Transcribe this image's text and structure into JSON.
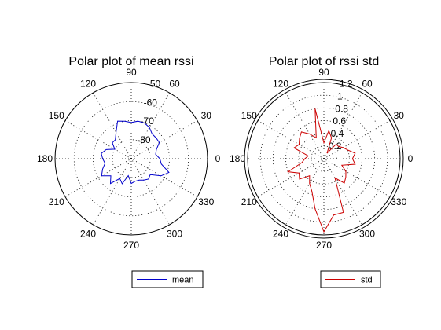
{
  "chart_data": [
    {
      "type": "polar-line",
      "title": "Polar plot of mean rssi",
      "theta_unit": "degrees",
      "theta_ticks": [
        "0",
        "30",
        "60",
        "90",
        "120",
        "150",
        "180",
        "210",
        "240",
        "270",
        "300",
        "330"
      ],
      "r_tick_labels": [
        "-80",
        "-70",
        "-60",
        "-50"
      ],
      "r_tick_values": [
        -80,
        -70,
        -60,
        -50
      ],
      "r_range": [
        -90,
        -50
      ],
      "grid": true,
      "legend_position": "bottom-right",
      "series": [
        {
          "name": "mean",
          "color": "#0000cc",
          "theta": [
            0,
            10,
            20,
            30,
            40,
            50,
            60,
            70,
            80,
            90,
            100,
            110,
            120,
            130,
            140,
            150,
            160,
            170,
            180,
            190,
            200,
            210,
            220,
            230,
            240,
            250,
            260,
            270,
            280,
            290,
            300,
            310,
            320,
            330,
            340,
            350,
            360
          ],
          "r": [
            -75,
            -77,
            -76,
            -73,
            -73,
            -73,
            -71,
            -70,
            -70,
            -71,
            -70,
            -69,
            -74,
            -77,
            -77,
            -80,
            -76,
            -74,
            -75,
            -76,
            -74,
            -72,
            -76,
            -73,
            -78,
            -76,
            -81,
            -77,
            -78,
            -78,
            -77,
            -76,
            -77,
            -72,
            -69,
            -74,
            -75
          ]
        }
      ]
    },
    {
      "type": "polar-line",
      "title": "Polar plot of rssi std",
      "theta_unit": "degrees",
      "theta_ticks": [
        "0",
        "30",
        "60",
        "90",
        "120",
        "150",
        "180",
        "210",
        "240",
        "270",
        "300",
        "330"
      ],
      "r_tick_labels": [
        "0.2",
        "0.4",
        "0.6",
        "0.8",
        "1",
        "1.2"
      ],
      "r_tick_values": [
        0.2,
        0.4,
        0.6,
        0.8,
        1.0,
        1.2
      ],
      "r_range": [
        0,
        1.2
      ],
      "grid": true,
      "legend_position": "bottom-right",
      "series": [
        {
          "name": "std",
          "color": "#cc0000",
          "theta": [
            0,
            10,
            20,
            30,
            40,
            50,
            60,
            70,
            80,
            90,
            100,
            110,
            120,
            130,
            140,
            150,
            160,
            170,
            180,
            190,
            200,
            210,
            220,
            230,
            240,
            250,
            260,
            270,
            280,
            290,
            300,
            310,
            320,
            330,
            340,
            350,
            360
          ],
          "r": [
            0.45,
            0.5,
            0.4,
            0.35,
            0.3,
            0.3,
            0.1,
            0.35,
            0.45,
            0.25,
            0.8,
            0.35,
            0.45,
            0.55,
            0.5,
            0.45,
            0.5,
            0.25,
            0.3,
            0.35,
            0.6,
            0.45,
            0.5,
            0.35,
            0.45,
            0.55,
            0.8,
            1.15,
            0.9,
            0.9,
            0.35,
            0.5,
            0.45,
            0.4,
            0.3,
            0.5,
            0.45
          ]
        }
      ]
    }
  ]
}
